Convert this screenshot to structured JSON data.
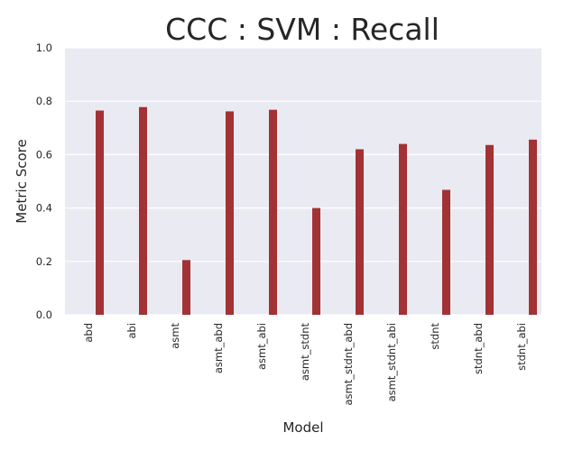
{
  "chart_data": {
    "type": "bar",
    "title": "CCC : SVM : Recall",
    "xlabel": "Model",
    "ylabel": "Metric Score",
    "categories": [
      "abd",
      "abi",
      "asmt",
      "asmt_abd",
      "asmt_abi",
      "asmt_stdnt",
      "asmt_stdnt_abd",
      "asmt_stdnt_abi",
      "stdnt",
      "stdnt_abd",
      "stdnt_abi"
    ],
    "values": [
      0.765,
      0.778,
      0.205,
      0.762,
      0.768,
      0.4,
      0.62,
      0.64,
      0.468,
      0.636,
      0.656
    ],
    "ylim": [
      0,
      1.0
    ],
    "yticks": [
      "0.0",
      "0.2",
      "0.4",
      "0.6",
      "0.8",
      "1.0"
    ],
    "grid": true,
    "colors": {
      "bar": "#a23234",
      "plot_background": "#eaeaf2",
      "grid": "#ffffff",
      "text": "#262626"
    }
  }
}
